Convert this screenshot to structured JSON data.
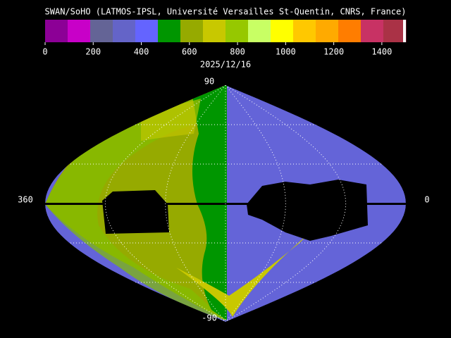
{
  "title": "SWAN/SoHO (LATMOS-IPSL, Université Versailles St-Quentin, CNRS, France)",
  "date": "2025/12/16",
  "colorbar": {
    "lim": [
      0,
      1500
    ],
    "ticks": [
      0,
      200,
      400,
      600,
      800,
      1000,
      1200,
      1400
    ],
    "colors": [
      "#8c0096",
      "#c800c8",
      "#646496",
      "#6464c8",
      "#6464ff",
      "#009600",
      "#96aa00",
      "#c8c800",
      "#96c800",
      "#c8ff64",
      "#ffff00",
      "#ffc800",
      "#ffaa00",
      "#ff7d00",
      "#c83264",
      "#aa3246"
    ]
  },
  "map": {
    "top_label": "90",
    "bottom_label": "-90",
    "left_label": "360",
    "right_label": "0"
  }
}
